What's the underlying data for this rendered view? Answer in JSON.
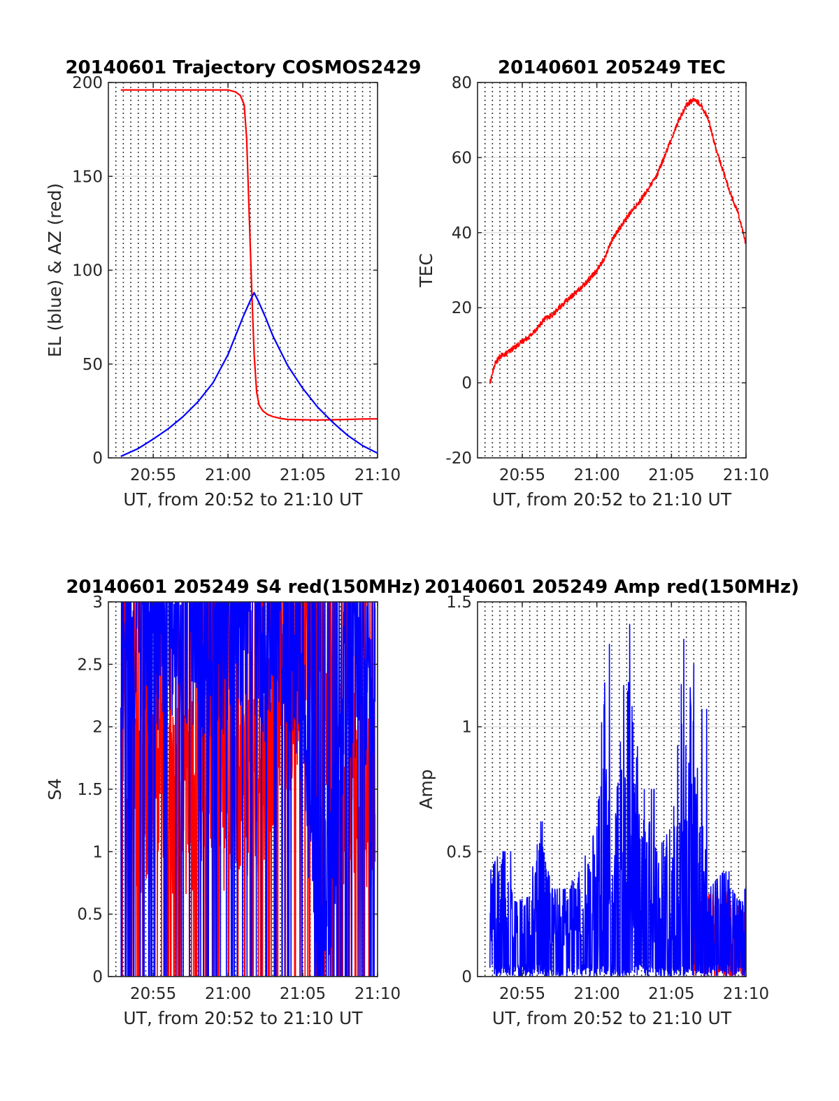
{
  "chart_data": [
    {
      "type": "line",
      "title": "20140601 Trajectory COSMOS2429",
      "xlabel": "UT, from 20:52 to 21:10 UT",
      "ylabel": "EL (blue) & AZ (red)",
      "xlim": [
        "20:52",
        "21:10"
      ],
      "ylim": [
        0,
        200
      ],
      "xticks": [
        "20:55",
        "21:00",
        "21:05",
        "21:10"
      ],
      "yticks": [
        "0",
        "50",
        "100",
        "150",
        "200"
      ],
      "grid": "vertical dotted every 30 s, horizontal gridlines",
      "series": [
        {
          "color": "#ff0000",
          "x": [
            "20:52:50",
            "20:55:00",
            "20:58:00",
            "21:00:00",
            "21:00:30",
            "21:00:50",
            "21:01:05",
            "21:01:15",
            "21:01:25",
            "21:01:35",
            "21:01:45",
            "21:01:55",
            "21:02:05",
            "21:02:20",
            "21:02:40",
            "21:03:00",
            "21:03:30",
            "21:04:00",
            "21:05:00",
            "21:06:00",
            "21:07:00",
            "21:08:00",
            "21:09:00",
            "21:10:00"
          ],
          "values": [
            196,
            196,
            196,
            196,
            195,
            193,
            188,
            170,
            130,
            90,
            55,
            35,
            28,
            25,
            23,
            22,
            21,
            20.5,
            20.3,
            20.2,
            20.3,
            20.5,
            20.7,
            20.8
          ]
        },
        {
          "color": "#0000ff",
          "x": [
            "20:52:50",
            "20:54:00",
            "20:55:00",
            "20:56:00",
            "20:57:00",
            "20:58:00",
            "20:59:00",
            "21:00:00",
            "21:00:30",
            "21:01:00",
            "21:01:30",
            "21:01:45",
            "21:02:00",
            "21:02:30",
            "21:03:00",
            "21:04:00",
            "21:05:00",
            "21:06:00",
            "21:07:00",
            "21:08:00",
            "21:09:00",
            "21:10:00"
          ],
          "values": [
            0.8,
            5,
            10,
            15.5,
            22,
            30,
            40,
            55,
            65,
            75,
            84,
            88,
            84,
            75,
            65,
            49,
            37,
            27,
            19,
            12,
            6.5,
            2.5
          ]
        }
      ]
    },
    {
      "type": "line",
      "title": "20140601 205249 TEC",
      "xlabel": "UT, from 20:52 to 21:10 UT",
      "ylabel": "TEC",
      "xlim": [
        "20:52",
        "21:10"
      ],
      "ylim": [
        -20,
        80
      ],
      "xticks": [
        "20:55",
        "21:00",
        "21:05",
        "21:10"
      ],
      "yticks": [
        "-20",
        "0",
        "20",
        "40",
        "60",
        "80"
      ],
      "series": [
        {
          "color": "#ff0000",
          "x": [
            "20:52:50",
            "20:53:10",
            "20:53:30",
            "20:54:00",
            "20:55:00",
            "20:55:40",
            "20:56:30",
            "20:57:00",
            "20:58:00",
            "20:59:00",
            "21:00:00",
            "21:00:30",
            "21:01:00",
            "21:02:00",
            "21:03:00",
            "21:03:30",
            "21:04:00",
            "21:04:30",
            "21:05:00",
            "21:05:30",
            "21:06:00",
            "21:06:30",
            "21:07:00",
            "21:07:30",
            "21:08:00",
            "21:08:30",
            "21:09:00",
            "21:09:30",
            "21:10:00"
          ],
          "values": [
            0,
            5,
            7,
            8,
            11,
            13,
            17,
            18,
            22,
            25.5,
            30,
            33,
            38,
            44,
            49,
            52,
            55,
            60,
            65,
            70,
            74,
            75.5,
            74,
            70,
            62,
            56,
            50,
            45,
            37
          ]
        }
      ]
    },
    {
      "type": "line",
      "title": "20140601 205249 S4 red(150MHz)",
      "xlabel": "UT, from 20:52 to 21:10 UT",
      "ylabel": "S4",
      "xlim": [
        "20:52",
        "21:10"
      ],
      "ylim": [
        0,
        3
      ],
      "xticks": [
        "20:55",
        "21:00",
        "21:05",
        "21:10"
      ],
      "yticks": [
        "0",
        "0.5",
        "1",
        "1.5",
        "2",
        "2.5",
        "3"
      ],
      "series": [
        {
          "color": "#ff0000",
          "x": [
            "20:52:50",
            "20:53:50",
            "20:54:50",
            "20:55:50",
            "20:56:50",
            "20:57:50",
            "20:58:50",
            "20:59:50",
            "21:00:50",
            "21:01:50",
            "21:02:50",
            "21:03:50",
            "21:04:50",
            "21:05:50",
            "21:06:50",
            "21:07:50",
            "21:08:50",
            "21:09:50"
          ],
          "values": [
            1.8,
            1.5,
            1.4,
            1.6,
            1.3,
            1.5,
            1.7,
            1.4,
            1.6,
            1.5,
            1.8,
            2.0,
            2.6,
            2.8,
            1.9,
            1.4,
            1.6,
            1.3
          ]
        },
        {
          "color": "#0000ff",
          "x": [
            "20:52:50",
            "20:53:50",
            "20:54:50",
            "20:55:50",
            "20:56:50",
            "20:57:50",
            "20:58:50",
            "20:59:50",
            "21:00:50",
            "21:01:50",
            "21:02:50",
            "21:03:50",
            "21:04:50",
            "21:05:50",
            "21:06:50",
            "21:07:50",
            "21:08:50",
            "21:09:50"
          ],
          "values": [
            2.7,
            2.8,
            2.6,
            2.9,
            2.7,
            2.8,
            2.6,
            2.7,
            2.9,
            2.7,
            2.6,
            2.8,
            2.5,
            0.75,
            0.7,
            2.4,
            2.6,
            2.2
          ]
        }
      ]
    },
    {
      "type": "line",
      "title": "20140601 205249 Amp red(150MHz)",
      "xlabel": "UT, from 20:52 to 21:10 UT",
      "ylabel": "Amp",
      "xlim": [
        "20:52",
        "21:10"
      ],
      "ylim": [
        0,
        1.5
      ],
      "xticks": [
        "20:55",
        "21:00",
        "21:05",
        "21:10"
      ],
      "yticks": [
        "0",
        "0.5",
        "1",
        "1.5"
      ],
      "series": [
        {
          "color": "#ff0000",
          "x": [
            "21:06:30",
            "21:07:00",
            "21:07:30",
            "21:08:00",
            "21:08:30",
            "21:09:00",
            "21:09:30",
            "21:10:00"
          ],
          "values": [
            0.28,
            0.3,
            0.33,
            0.32,
            0.34,
            0.3,
            0.28,
            0.25
          ]
        },
        {
          "color": "#0000ff",
          "x": [
            "20:52:50",
            "20:53:30",
            "20:54:30",
            "20:55:30",
            "20:56:00",
            "20:57:00",
            "20:58:00",
            "20:59:00",
            "21:00:00",
            "21:00:30",
            "21:01:00",
            "21:02:00",
            "21:03:00",
            "21:04:00",
            "21:05:00",
            "21:05:40",
            "21:06:00",
            "21:06:30",
            "21:07:30",
            "21:08:30",
            "21:09:30",
            "21:10:00"
          ],
          "values": [
            0.42,
            0.5,
            0.3,
            0.32,
            0.62,
            0.35,
            0.35,
            0.45,
            0.6,
            1.33,
            0.4,
            1.41,
            0.75,
            0.5,
            0.6,
            1.35,
            1.25,
            1.07,
            0.35,
            0.42,
            0.3,
            0.36
          ]
        }
      ]
    }
  ]
}
